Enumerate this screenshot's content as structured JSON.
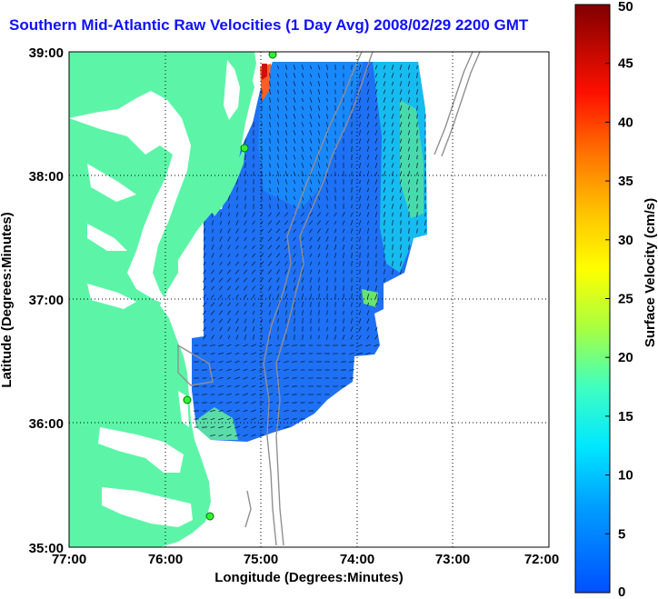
{
  "title": "Southern Mid-Atlantic Raw Velocities (1 Day Avg) 2008/02/29 2200 GMT",
  "x_axis": {
    "label": "Longitude (Degrees:Minutes)",
    "ticks": [
      "77:00",
      "76:00",
      "75:00",
      "74:00",
      "73:00",
      "72:00"
    ]
  },
  "y_axis": {
    "label": "Latitude (Degrees:Minutes)",
    "ticks": [
      "39:00",
      "38:00",
      "37:00",
      "36:00",
      "35:00"
    ]
  },
  "colorbar": {
    "label": "Surface Velocity (cm/s)",
    "min": 0,
    "max": 50,
    "ticks": [
      "0",
      "5",
      "10",
      "15",
      "20",
      "25",
      "30",
      "35",
      "40",
      "45",
      "50"
    ]
  },
  "colors": {
    "land": "#5cf5a8",
    "ocean": "#ffffff",
    "title": "#1010ff",
    "bathymetry": "#909090",
    "station": "#33ee33"
  }
}
